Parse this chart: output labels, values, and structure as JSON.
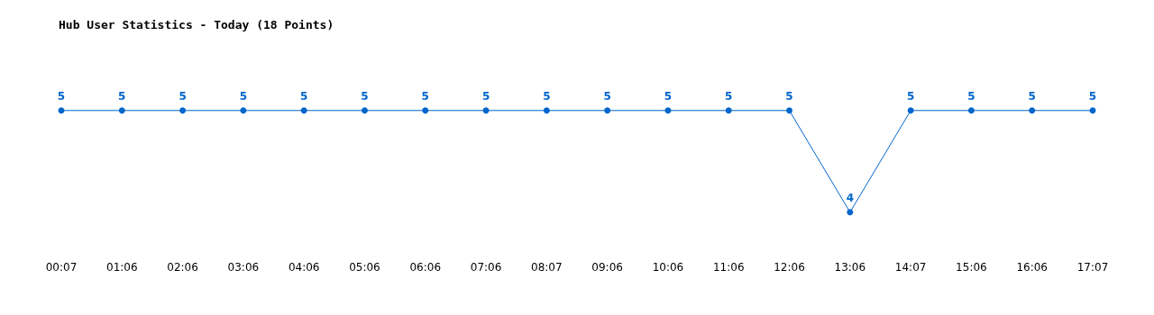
{
  "chart_data": {
    "type": "line",
    "title": "Hub User Statistics - Today (18 Points)",
    "categories": [
      "00:07",
      "01:06",
      "02:06",
      "03:06",
      "04:06",
      "05:06",
      "06:06",
      "07:06",
      "08:07",
      "09:06",
      "10:06",
      "11:06",
      "12:06",
      "13:06",
      "14:07",
      "15:06",
      "16:06",
      "17:07"
    ],
    "series": [
      {
        "color": "#0066cc",
        "values": [
          5,
          5,
          5,
          5,
          5,
          5,
          5,
          5,
          5,
          5,
          5,
          5,
          5,
          4,
          5,
          5,
          5,
          5
        ]
      }
    ],
    "tick_labels": "x",
    "grid": false,
    "marker": "circle",
    "line_style": "solid",
    "data_labels": true
  }
}
